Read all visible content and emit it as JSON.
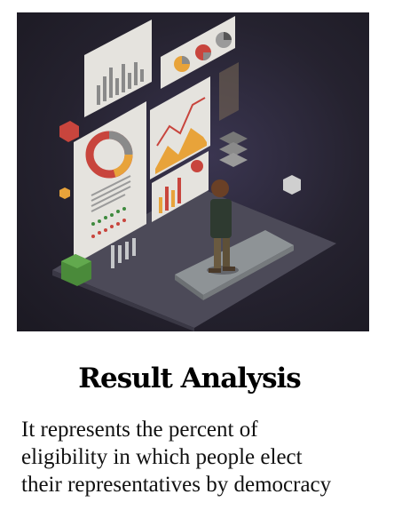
{
  "card": {
    "title": "Result Analysis",
    "description": "It represents the percent of\neligibility in which people elect\ntheir representatives  by democracy"
  },
  "image": {
    "subject": "isometric analytics dashboard illustration",
    "colors": {
      "background": "#25222f",
      "panel": "#e8e6e0",
      "accent_orange": "#e8a33a",
      "accent_red": "#c8453d",
      "floor": "#5a5866"
    }
  }
}
